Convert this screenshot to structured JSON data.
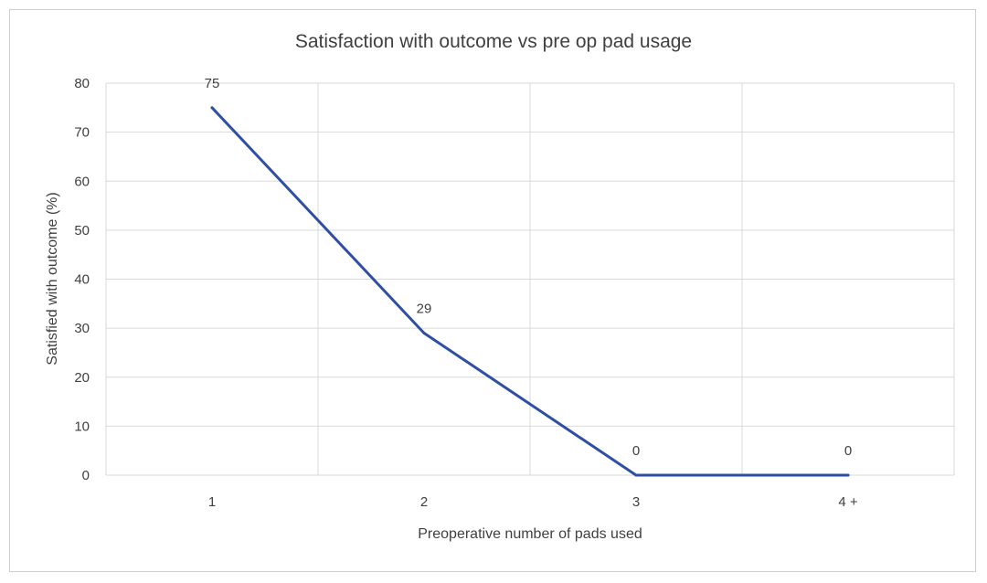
{
  "chart_data": {
    "type": "line",
    "title": "Satisfaction with outcome vs pre op pad usage",
    "xlabel": "Preoperative  number of pads used",
    "ylabel": "Satisfied with outcome  (%)",
    "categories": [
      "1",
      "2",
      "3",
      "4 +"
    ],
    "series": [
      {
        "values": [
          75,
          29,
          0,
          0
        ],
        "color": "#2f4fa3"
      }
    ],
    "data_labels": [
      "75",
      "29",
      "0",
      "0"
    ],
    "ylim": [
      0,
      80
    ],
    "yticks": [
      0,
      10,
      20,
      30,
      40,
      50,
      60,
      70,
      80
    ],
    "grid": true,
    "legend": "none"
  }
}
